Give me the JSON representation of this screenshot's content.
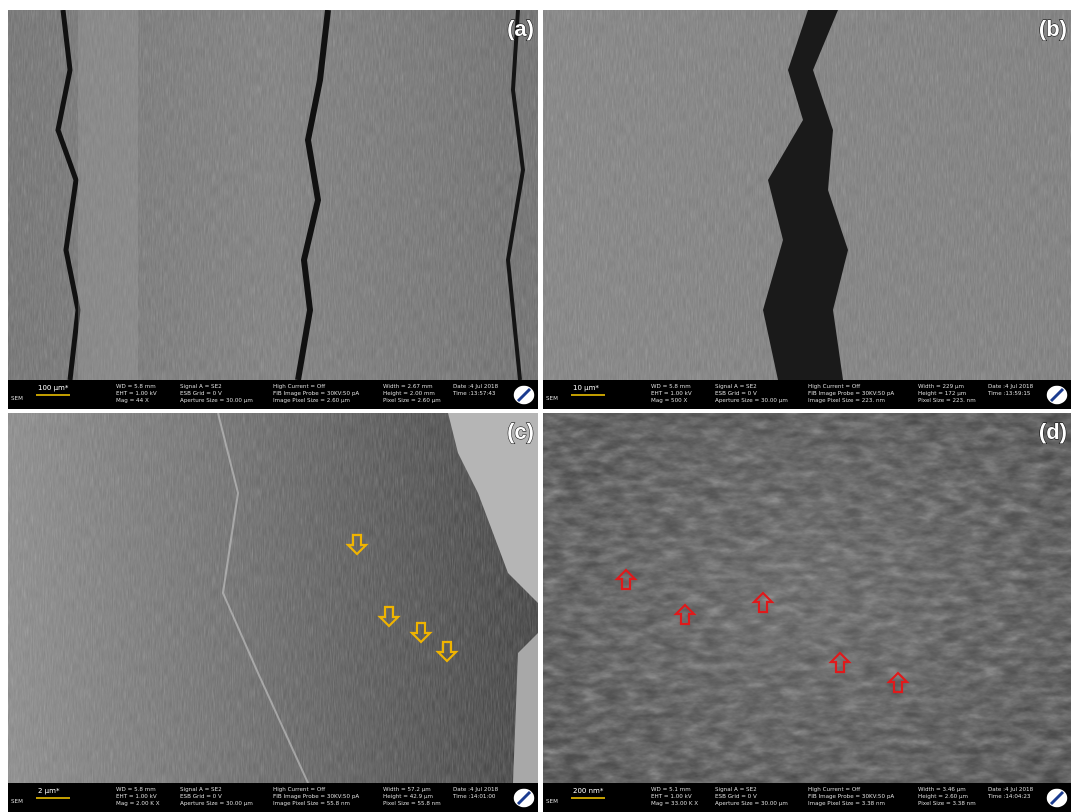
{
  "panels": [
    {
      "label": "(a)",
      "detector": "SEM",
      "scale_bar": "100 µm*",
      "info": [
        [
          "WD = 5.8 mm",
          "EHT = 1.00 kV",
          "Mag = 44 X"
        ],
        [
          "Signal A = SE2",
          "ESB Grid = 0 V",
          "Aperture Size = 30.00 µm"
        ],
        [
          "High Current = Off",
          "FIB Image Probe = 30KV:50 pA",
          "Image Pixel Size = 2.60 µm"
        ],
        [
          "Width = 2.67 mm",
          "Height = 2.00 mm",
          "Pixel Size = 2.60 µm"
        ],
        [
          "Date :4 Jul 2018",
          "Time :13:57:43"
        ]
      ]
    },
    {
      "label": "(b)",
      "detector": "SEM",
      "scale_bar": "10 µm*",
      "info": [
        [
          "WD = 5.8 mm",
          "EHT = 1.00 kV",
          "Mag = 500 X"
        ],
        [
          "Signal A = SE2",
          "ESB Grid = 0 V",
          "Aperture Size = 30.00 µm"
        ],
        [
          "High Current = Off",
          "FIB Image Probe = 30KV:50 pA",
          "Image Pixel Size = 223. nm"
        ],
        [
          "Width = 229 µm",
          "Height = 172 µm",
          "Pixel Size = 223. nm"
        ],
        [
          "Date :4 Jul 2018",
          "Time :13:59:15"
        ]
      ]
    },
    {
      "label": "(c)",
      "detector": "SEM",
      "scale_bar": "2 µm*",
      "info": [
        [
          "WD = 5.8 mm",
          "EHT = 1.00 kV",
          "Mag = 2.00 K X"
        ],
        [
          "Signal A = SE2",
          "ESB Grid = 0 V",
          "Aperture Size = 30.00 µm"
        ],
        [
          "High Current = Off",
          "FIB Image Probe = 30KV:50 pA",
          "Image Pixel Size = 55.8 nm"
        ],
        [
          "Width = 57.2 µm",
          "Height = 42.9 µm",
          "Pixel Size = 55.8 nm"
        ],
        [
          "Date :4 Jul 2018",
          "Time :14:01:00"
        ]
      ]
    },
    {
      "label": "(d)",
      "detector": "SEM",
      "scale_bar": "200 nm*",
      "info": [
        [
          "WD = 5.1 mm",
          "EHT = 1.00 kV",
          "Mag = 33.00 K X"
        ],
        [
          "Signal A = SE2",
          "ESB Grid = 0 V",
          "Aperture Size = 30.00 µm"
        ],
        [
          "High Current = Off",
          "FIB Image Probe = 30KV:50 pA",
          "Image Pixel Size = 3.38 nm"
        ],
        [
          "Width = 3.46 µm",
          "Height = 2.60 µm",
          "Pixel Size = 3.38 nm"
        ],
        [
          "Date :4 Jul 2018",
          "Time :14:04:23"
        ]
      ]
    }
  ]
}
